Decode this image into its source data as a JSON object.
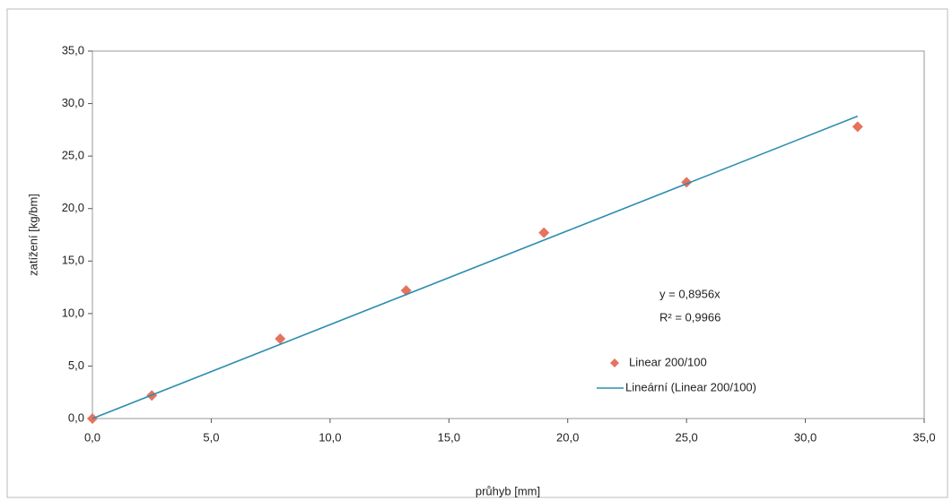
{
  "chart_data": {
    "type": "scatter",
    "xlabel": "průhyb [mm]",
    "ylabel": "zatížení [kg/bm]",
    "xlim": [
      0,
      35
    ],
    "ylim": [
      0,
      35
    ],
    "xticks": [
      {
        "value": 0,
        "label": "0,0"
      },
      {
        "value": 5,
        "label": "5,0"
      },
      {
        "value": 10,
        "label": "10,0"
      },
      {
        "value": 15,
        "label": "15,0"
      },
      {
        "value": 20,
        "label": "20,0"
      },
      {
        "value": 25,
        "label": "25,0"
      },
      {
        "value": 30,
        "label": "30,0"
      },
      {
        "value": 35,
        "label": "35,0"
      }
    ],
    "yticks": [
      {
        "value": 0,
        "label": "0,0"
      },
      {
        "value": 5,
        "label": "5,0"
      },
      {
        "value": 10,
        "label": "10,0"
      },
      {
        "value": 15,
        "label": "15,0"
      },
      {
        "value": 20,
        "label": "20,0"
      },
      {
        "value": 25,
        "label": "25,0"
      },
      {
        "value": 30,
        "label": "30,0"
      },
      {
        "value": 35,
        "label": "35,0"
      }
    ],
    "grid": false,
    "legend": "center right",
    "annotations": [
      "y = 0,8956x",
      "R² = 0,9966"
    ],
    "series": [
      {
        "name": "Linear 200/100",
        "type": "scatter",
        "color": "#e5735e",
        "x": [
          0,
          2.5,
          7.9,
          13.2,
          19.0,
          25.0,
          32.2
        ],
        "values": [
          0,
          2.2,
          7.6,
          12.2,
          17.7,
          22.5,
          27.8
        ]
      },
      {
        "name": "Lineární (Linear 200/100)",
        "type": "line",
        "color": "#2b8db0",
        "x": [
          0,
          32.2
        ],
        "values": [
          0,
          28.8
        ]
      }
    ]
  }
}
